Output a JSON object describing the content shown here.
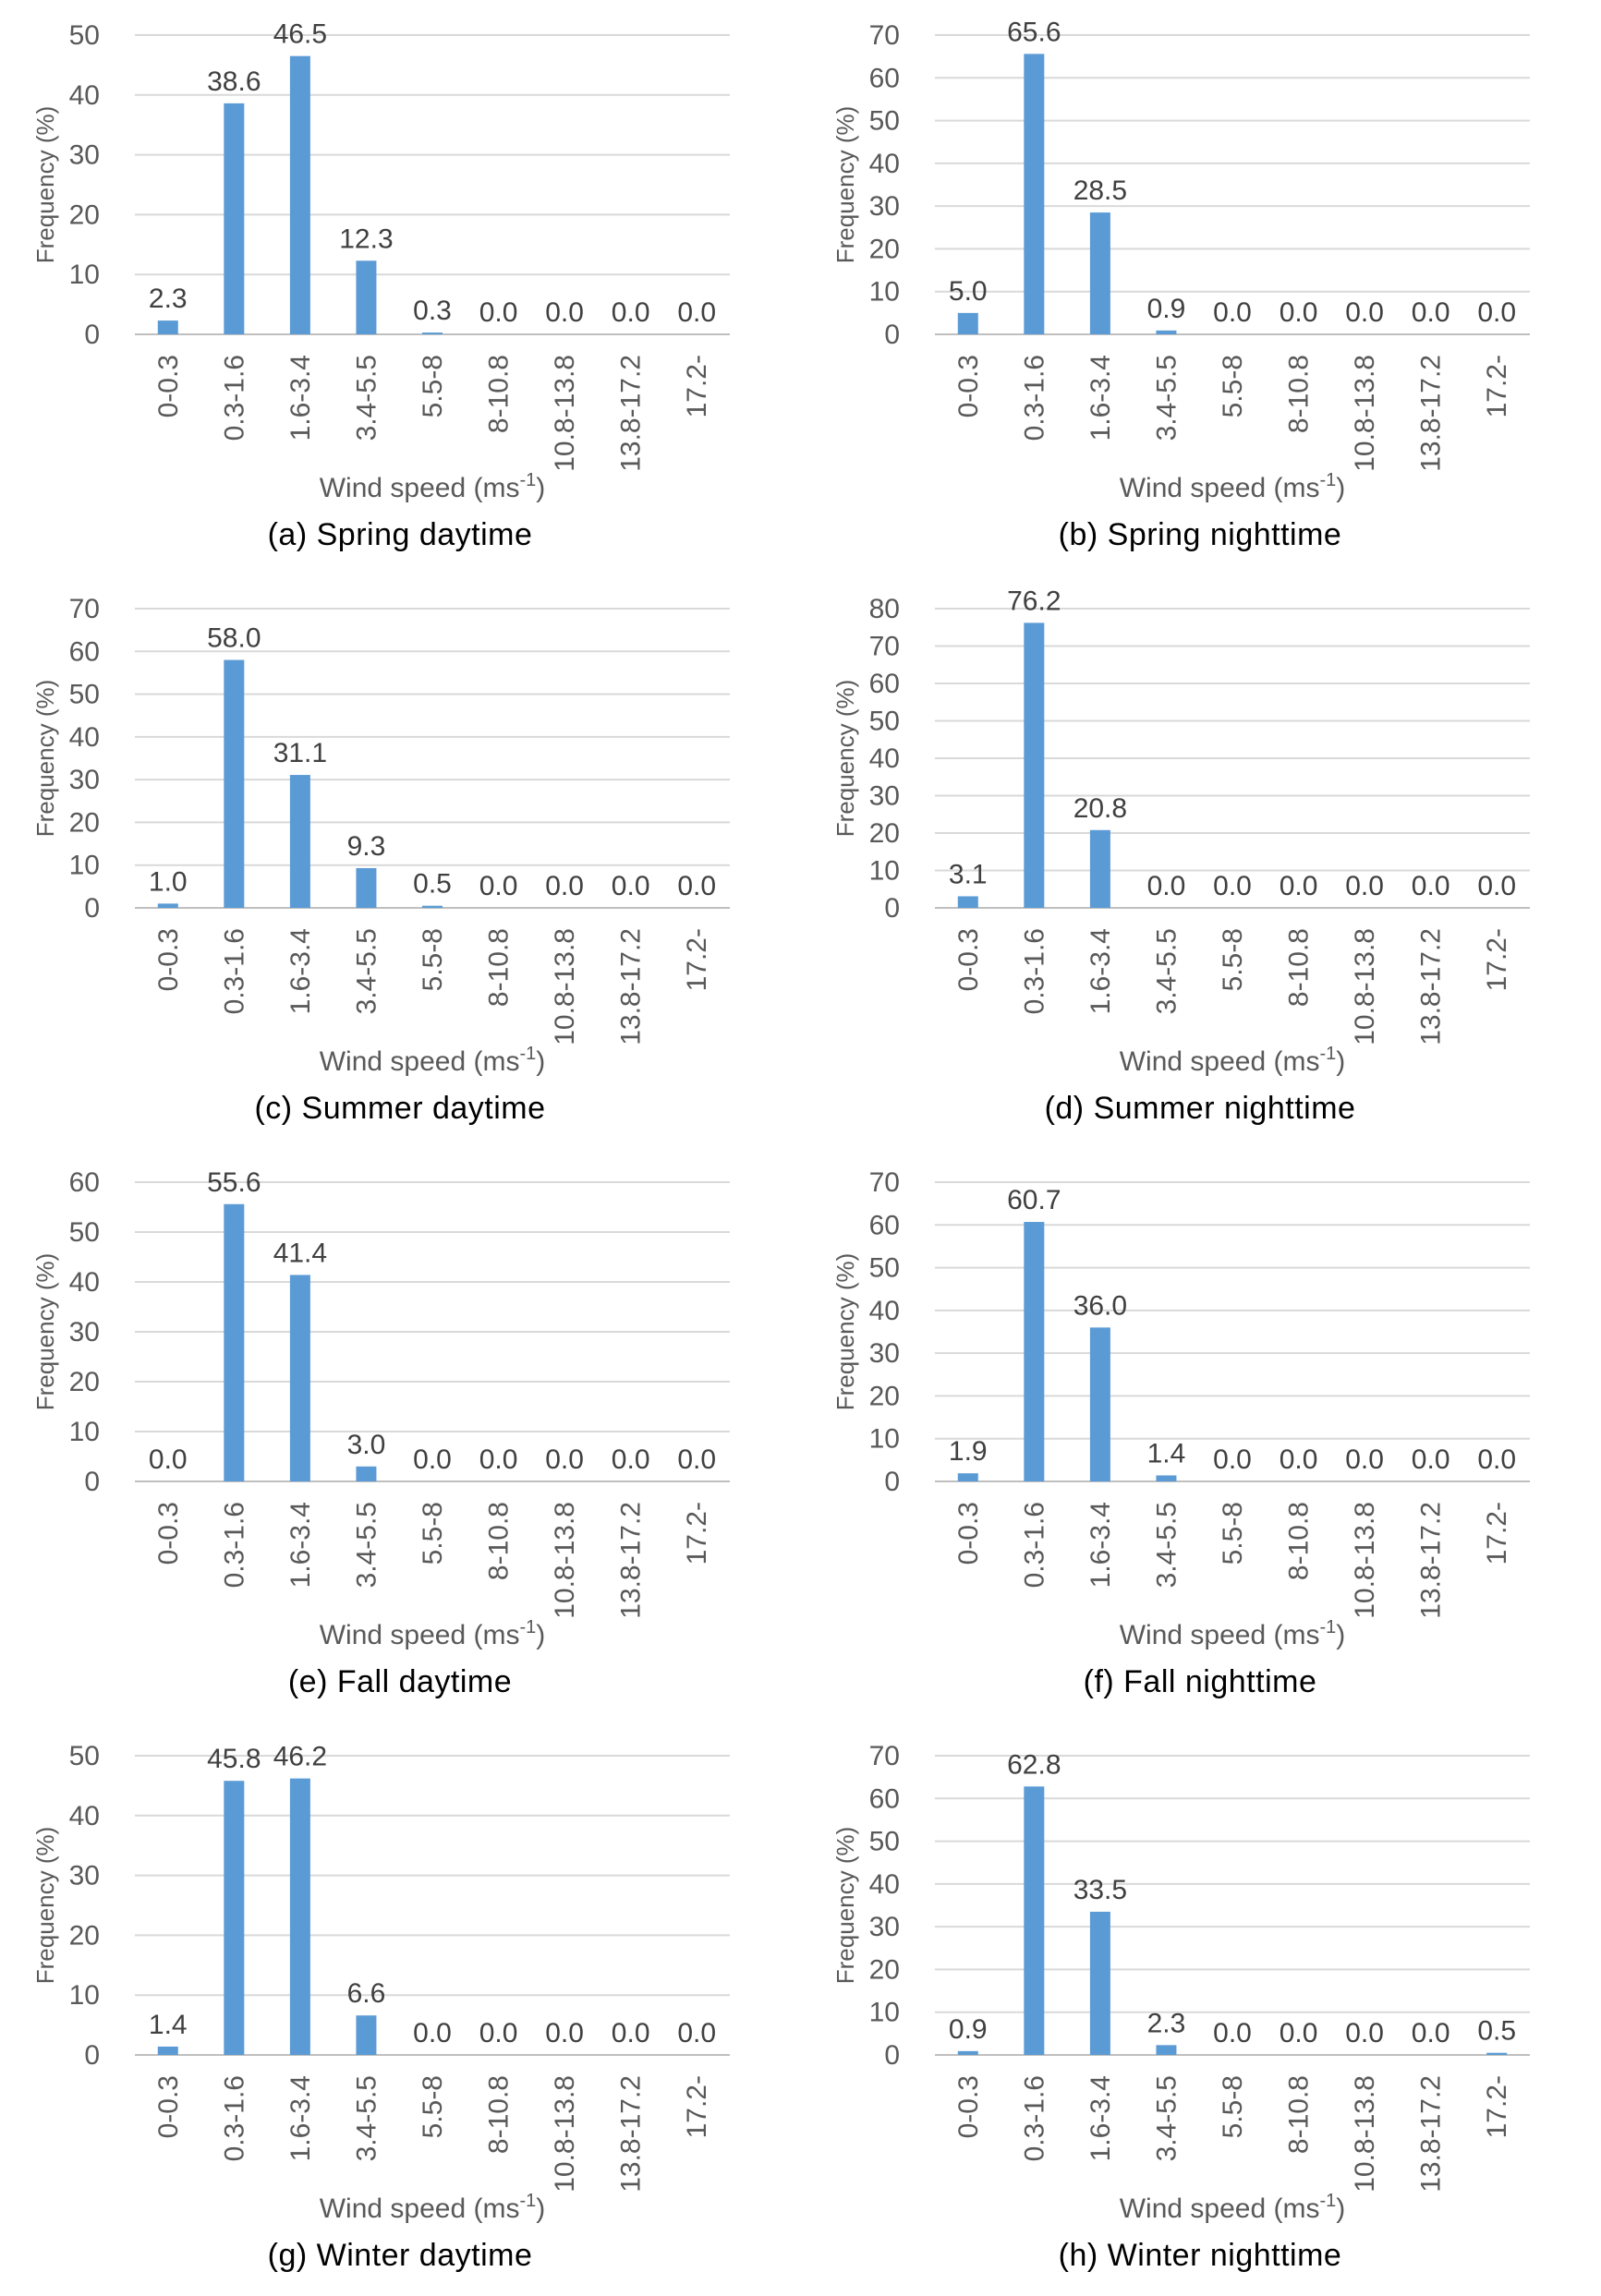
{
  "colors": {
    "bar": "#5b9bd5",
    "grid": "#d9d9d9"
  },
  "chart_data": [
    {
      "type": "bar",
      "caption": "(a)  Spring  daytime",
      "categories": [
        "0-0.3",
        "0.3-1.6",
        "1.6-3.4",
        "3.4-5.5",
        "5.5-8",
        "8-10.8",
        "10.8-13.8",
        "13.8-17.2",
        "17.2-"
      ],
      "values": [
        2.3,
        38.6,
        46.5,
        12.3,
        0.3,
        0.0,
        0.0,
        0.0,
        0.0
      ],
      "labels": [
        "2.3",
        "38.6",
        "46.5",
        "12.3",
        "0.3",
        "0.0",
        "0.0",
        "0.0",
        "0.0"
      ],
      "ylabel": "Frequency (%)",
      "xlabel": "Wind speed (ms",
      "xlabel_sup": "-1",
      "xlabel_end": ")",
      "ylim": [
        0,
        50
      ],
      "yticks": [
        0,
        10,
        20,
        30,
        40,
        50
      ],
      "grid": true
    },
    {
      "type": "bar",
      "caption": "(b)  Spring  nighttime",
      "categories": [
        "0-0.3",
        "0.3-1.6",
        "1.6-3.4",
        "3.4-5.5",
        "5.5-8",
        "8-10.8",
        "10.8-13.8",
        "13.8-17.2",
        "17.2-"
      ],
      "values": [
        5.0,
        65.6,
        28.5,
        0.9,
        0.0,
        0.0,
        0.0,
        0.0,
        0.0
      ],
      "labels": [
        "5.0",
        "65.6",
        "28.5",
        "0.9",
        "0.0",
        "0.0",
        "0.0",
        "0.0",
        "0.0"
      ],
      "ylabel": "Frequency (%)",
      "xlabel": "Wind speed (ms",
      "xlabel_sup": "-1",
      "xlabel_end": ")",
      "ylim": [
        0,
        70
      ],
      "yticks": [
        0,
        10,
        20,
        30,
        40,
        50,
        60,
        70
      ],
      "grid": true
    },
    {
      "type": "bar",
      "caption": "(c)  Summer  daytime",
      "categories": [
        "0-0.3",
        "0.3-1.6",
        "1.6-3.4",
        "3.4-5.5",
        "5.5-8",
        "8-10.8",
        "10.8-13.8",
        "13.8-17.2",
        "17.2-"
      ],
      "values": [
        1.0,
        58.0,
        31.1,
        9.3,
        0.5,
        0.0,
        0.0,
        0.0,
        0.0
      ],
      "labels": [
        "1.0",
        "58.0",
        "31.1",
        "9.3",
        "0.5",
        "0.0",
        "0.0",
        "0.0",
        "0.0"
      ],
      "ylabel": "Frequency (%)",
      "xlabel": "Wind speed (ms",
      "xlabel_sup": "-1",
      "xlabel_end": ")",
      "ylim": [
        0,
        70
      ],
      "yticks": [
        0,
        10,
        20,
        30,
        40,
        50,
        60,
        70
      ],
      "grid": true
    },
    {
      "type": "bar",
      "caption": "(d)  Summer  nighttime",
      "categories": [
        "0-0.3",
        "0.3-1.6",
        "1.6-3.4",
        "3.4-5.5",
        "5.5-8",
        "8-10.8",
        "10.8-13.8",
        "13.8-17.2",
        "17.2-"
      ],
      "values": [
        3.1,
        76.2,
        20.8,
        0.0,
        0.0,
        0.0,
        0.0,
        0.0,
        0.0
      ],
      "labels": [
        "3.1",
        "76.2",
        "20.8",
        "0.0",
        "0.0",
        "0.0",
        "0.0",
        "0.0",
        "0.0"
      ],
      "ylabel": "Frequency (%)",
      "xlabel": "Wind speed (ms",
      "xlabel_sup": "-1",
      "xlabel_end": ")",
      "ylim": [
        0,
        80
      ],
      "yticks": [
        0,
        10,
        20,
        30,
        40,
        50,
        60,
        70,
        80
      ],
      "grid": true
    },
    {
      "type": "bar",
      "caption": "(e)  Fall  daytime",
      "categories": [
        "0-0.3",
        "0.3-1.6",
        "1.6-3.4",
        "3.4-5.5",
        "5.5-8",
        "8-10.8",
        "10.8-13.8",
        "13.8-17.2",
        "17.2-"
      ],
      "values": [
        0.0,
        55.6,
        41.4,
        3.0,
        0.0,
        0.0,
        0.0,
        0.0,
        0.0
      ],
      "labels": [
        "0.0",
        "55.6",
        "41.4",
        "3.0",
        "0.0",
        "0.0",
        "0.0",
        "0.0",
        "0.0"
      ],
      "ylabel": "Frequency (%)",
      "xlabel": "Wind speed (ms",
      "xlabel_sup": "-1",
      "xlabel_end": ")",
      "ylim": [
        0,
        60
      ],
      "yticks": [
        0,
        10,
        20,
        30,
        40,
        50,
        60
      ],
      "grid": true
    },
    {
      "type": "bar",
      "caption": "(f)  Fall  nighttime",
      "categories": [
        "0-0.3",
        "0.3-1.6",
        "1.6-3.4",
        "3.4-5.5",
        "5.5-8",
        "8-10.8",
        "10.8-13.8",
        "13.8-17.2",
        "17.2-"
      ],
      "values": [
        1.9,
        60.7,
        36.0,
        1.4,
        0.0,
        0.0,
        0.0,
        0.0,
        0.0
      ],
      "labels": [
        "1.9",
        "60.7",
        "36.0",
        "1.4",
        "0.0",
        "0.0",
        "0.0",
        "0.0",
        "0.0"
      ],
      "ylabel": "Frequency (%)",
      "xlabel": "Wind speed (ms",
      "xlabel_sup": "-1",
      "xlabel_end": ")",
      "ylim": [
        0,
        70
      ],
      "yticks": [
        0,
        10,
        20,
        30,
        40,
        50,
        60,
        70
      ],
      "grid": true
    },
    {
      "type": "bar",
      "caption": "(g)  Winter  daytime",
      "categories": [
        "0-0.3",
        "0.3-1.6",
        "1.6-3.4",
        "3.4-5.5",
        "5.5-8",
        "8-10.8",
        "10.8-13.8",
        "13.8-17.2",
        "17.2-"
      ],
      "values": [
        1.4,
        45.8,
        46.2,
        6.6,
        0.0,
        0.0,
        0.0,
        0.0,
        0.0
      ],
      "labels": [
        "1.4",
        "45.8",
        "46.2",
        "6.6",
        "0.0",
        "0.0",
        "0.0",
        "0.0",
        "0.0"
      ],
      "ylabel": "Frequency (%)",
      "xlabel": "Wind speed (ms",
      "xlabel_sup": "-1",
      "xlabel_end": ")",
      "ylim": [
        0,
        50
      ],
      "yticks": [
        0,
        10,
        20,
        30,
        40,
        50
      ],
      "grid": true
    },
    {
      "type": "bar",
      "caption": "(h)  Winter  nighttime",
      "categories": [
        "0-0.3",
        "0.3-1.6",
        "1.6-3.4",
        "3.4-5.5",
        "5.5-8",
        "8-10.8",
        "10.8-13.8",
        "13.8-17.2",
        "17.2-"
      ],
      "values": [
        0.9,
        62.8,
        33.5,
        2.3,
        0.0,
        0.0,
        0.0,
        0.0,
        0.5
      ],
      "labels": [
        "0.9",
        "62.8",
        "33.5",
        "2.3",
        "0.0",
        "0.0",
        "0.0",
        "0.0",
        "0.5"
      ],
      "ylabel": "Frequency (%)",
      "xlabel": "Wind speed (ms",
      "xlabel_sup": "-1",
      "xlabel_end": ")",
      "ylim": [
        0,
        70
      ],
      "yticks": [
        0,
        10,
        20,
        30,
        40,
        50,
        60,
        70
      ],
      "grid": true
    }
  ]
}
